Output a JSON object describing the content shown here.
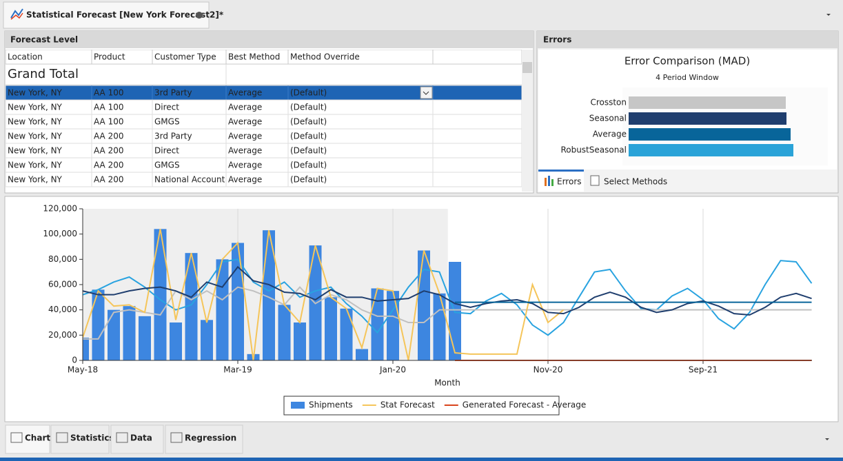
{
  "window": {
    "tab_title": "Statistical Forecast [New York Forecast2]*"
  },
  "forecast_level": {
    "title": "Forecast Level",
    "columns": [
      "Location",
      "Product",
      "Customer Type",
      "Best Method",
      "Method Override"
    ],
    "grand_total": "Grand Total",
    "selected_row": 0,
    "rows": [
      [
        "New York, NY",
        "AA 100",
        "3rd Party",
        "Average",
        "(Default)"
      ],
      [
        "New York, NY",
        "AA 100",
        "Direct",
        "Average",
        "(Default)"
      ],
      [
        "New York, NY",
        "AA 100",
        "GMGS",
        "Average",
        "(Default)"
      ],
      [
        "New York, NY",
        "AA 200",
        "3rd Party",
        "Average",
        "(Default)"
      ],
      [
        "New York, NY",
        "AA 200",
        "Direct",
        "Average",
        "(Default)"
      ],
      [
        "New York, NY",
        "AA 200",
        "GMGS",
        "Average",
        "(Default)"
      ],
      [
        "New York, NY",
        "AA 200",
        "National Account",
        "Average",
        "(Default)"
      ]
    ]
  },
  "errors_panel": {
    "title": "Errors",
    "tabs": [
      "Errors",
      "Select Methods"
    ]
  },
  "bottom_tabs": [
    "Chart",
    "Statistics",
    "Data",
    "Regression"
  ],
  "chart_data": [
    {
      "type": "combo",
      "xlabel": "Month",
      "grid": "x",
      "categories": [
        "May-18",
        null,
        null,
        null,
        null,
        null,
        null,
        null,
        null,
        null,
        "Mar-19",
        null,
        null,
        null,
        null,
        null,
        null,
        null,
        null,
        null,
        "Jan-20",
        null,
        null,
        null,
        null,
        null,
        null,
        null,
        null,
        null,
        "Nov-20",
        null,
        null,
        null,
        null,
        null,
        null,
        null,
        null,
        null,
        "Sep-21",
        null,
        null,
        null,
        null,
        null,
        null,
        null
      ],
      "ylim": [
        0,
        120000
      ],
      "yticks": [
        0,
        {
          "value": 20000,
          "label": "20,000"
        },
        {
          "value": 40000,
          "label": "40,000"
        },
        {
          "value": 60000,
          "label": "60,000"
        },
        {
          "value": 80000,
          "label": "80,000"
        },
        {
          "value": 100000,
          "label": "100,000"
        },
        {
          "value": 120000,
          "label": "120,000"
        }
      ],
      "series": [
        {
          "name": "Shipments",
          "type": "bar",
          "color": "#3d86e0",
          "values": [
            18000,
            56000,
            40000,
            43000,
            35000,
            104000,
            30000,
            85000,
            32000,
            80000,
            93000,
            5000,
            103000,
            44000,
            30000,
            91000,
            50000,
            41000,
            9000,
            57000,
            55000,
            0,
            87000,
            53000,
            78000,
            null,
            null,
            null,
            null,
            null,
            null,
            null,
            null,
            null,
            null,
            null,
            null,
            null,
            null,
            null,
            null,
            null,
            null,
            null,
            null,
            null,
            null,
            null
          ]
        },
        {
          "type": "line",
          "color": "#29a3e0",
          "values": [
            52000,
            56000,
            62000,
            66000,
            58000,
            48000,
            40000,
            44000,
            60000,
            78000,
            80000,
            62000,
            55000,
            62000,
            50000,
            55000,
            58000,
            45000,
            35000,
            22000,
            40000,
            58000,
            72000,
            70000,
            38000,
            37000,
            47000,
            53000,
            44000,
            28000,
            20000,
            30000,
            50000,
            70000,
            72000,
            55000,
            41000,
            40000,
            51000,
            57000,
            48000,
            33000,
            25000,
            38000,
            60000,
            79000,
            78000,
            61000
          ]
        },
        {
          "type": "line",
          "color": "#c0c0c0",
          "values": [
            17000,
            17000,
            38000,
            40000,
            38000,
            36000,
            55000,
            48000,
            55000,
            48000,
            58000,
            55000,
            50000,
            44000,
            58000,
            45000,
            52000,
            48000,
            40000,
            35000,
            35000,
            30000,
            30000,
            40000,
            40000,
            40000,
            40000,
            40000,
            40000,
            40000,
            40000,
            40000,
            40000,
            40000,
            40000,
            40000,
            40000,
            40000,
            40000,
            40000,
            40000,
            40000,
            40000,
            40000,
            40000,
            40000,
            40000,
            40000
          ]
        },
        {
          "name": "Stat Forecast",
          "type": "line",
          "color": "#f5c55a",
          "values": [
            18000,
            55000,
            43000,
            44000,
            38000,
            104000,
            32000,
            85000,
            30000,
            80000,
            93000,
            0,
            103000,
            44000,
            30000,
            91000,
            50000,
            41000,
            10000,
            57000,
            55000,
            0,
            87000,
            53000,
            6000,
            5000,
            5000,
            5000,
            5000,
            60000,
            30000,
            40000,
            null,
            null,
            null,
            null,
            null,
            null,
            null,
            null,
            null,
            null,
            null,
            null,
            null,
            null,
            null,
            null
          ]
        },
        {
          "type": "line",
          "color": "#1f3e6e",
          "values": [
            55000,
            52000,
            52000,
            55000,
            57000,
            58000,
            55000,
            50000,
            62000,
            58000,
            74000,
            63000,
            60000,
            54000,
            53000,
            48000,
            56000,
            50000,
            50000,
            47000,
            48000,
            49000,
            55000,
            52000,
            45000,
            42000,
            45000,
            47000,
            48000,
            45000,
            38000,
            37000,
            42000,
            50000,
            54000,
            50000,
            42000,
            38000,
            40000,
            45000,
            47000,
            43000,
            37000,
            36000,
            42000,
            50000,
            53000,
            49000
          ]
        },
        {
          "type": "line",
          "color": "#08659a",
          "values": [
            null,
            null,
            null,
            null,
            null,
            null,
            null,
            null,
            null,
            null,
            null,
            null,
            null,
            null,
            null,
            null,
            null,
            null,
            null,
            null,
            null,
            null,
            null,
            null,
            46000,
            46000,
            46000,
            46000,
            46000,
            46000,
            46000,
            46000,
            46000,
            46000,
            46000,
            46000,
            46000,
            46000,
            46000,
            46000,
            46000,
            46000,
            46000,
            46000,
            46000,
            46000,
            46000,
            46000
          ]
        },
        {
          "name": "Generated Forecast - Average",
          "type": "line",
          "color": "#d9441c",
          "values": [
            null,
            null,
            null,
            null,
            null,
            null,
            null,
            null,
            null,
            null,
            null,
            null,
            null,
            null,
            null,
            null,
            null,
            null,
            null,
            null,
            null,
            null,
            null,
            null,
            0,
            0,
            0,
            0,
            0,
            0,
            0,
            0,
            0,
            0,
            0,
            0,
            0,
            0,
            0,
            0,
            0,
            0,
            0,
            0,
            0,
            0,
            0,
            0
          ]
        }
      ]
    },
    {
      "type": "hbar",
      "title": "Error Comparison (MAD)",
      "subtitle": "4 Period Window",
      "categories": [
        "Crosston",
        "Seasonal",
        "Average",
        "RobustSeasonal"
      ],
      "values": [
        228,
        229,
        235,
        239
      ],
      "colors": [
        "#c6c6c6",
        "#1f3e6e",
        "#08659a",
        "#2aa3d8"
      ]
    }
  ]
}
